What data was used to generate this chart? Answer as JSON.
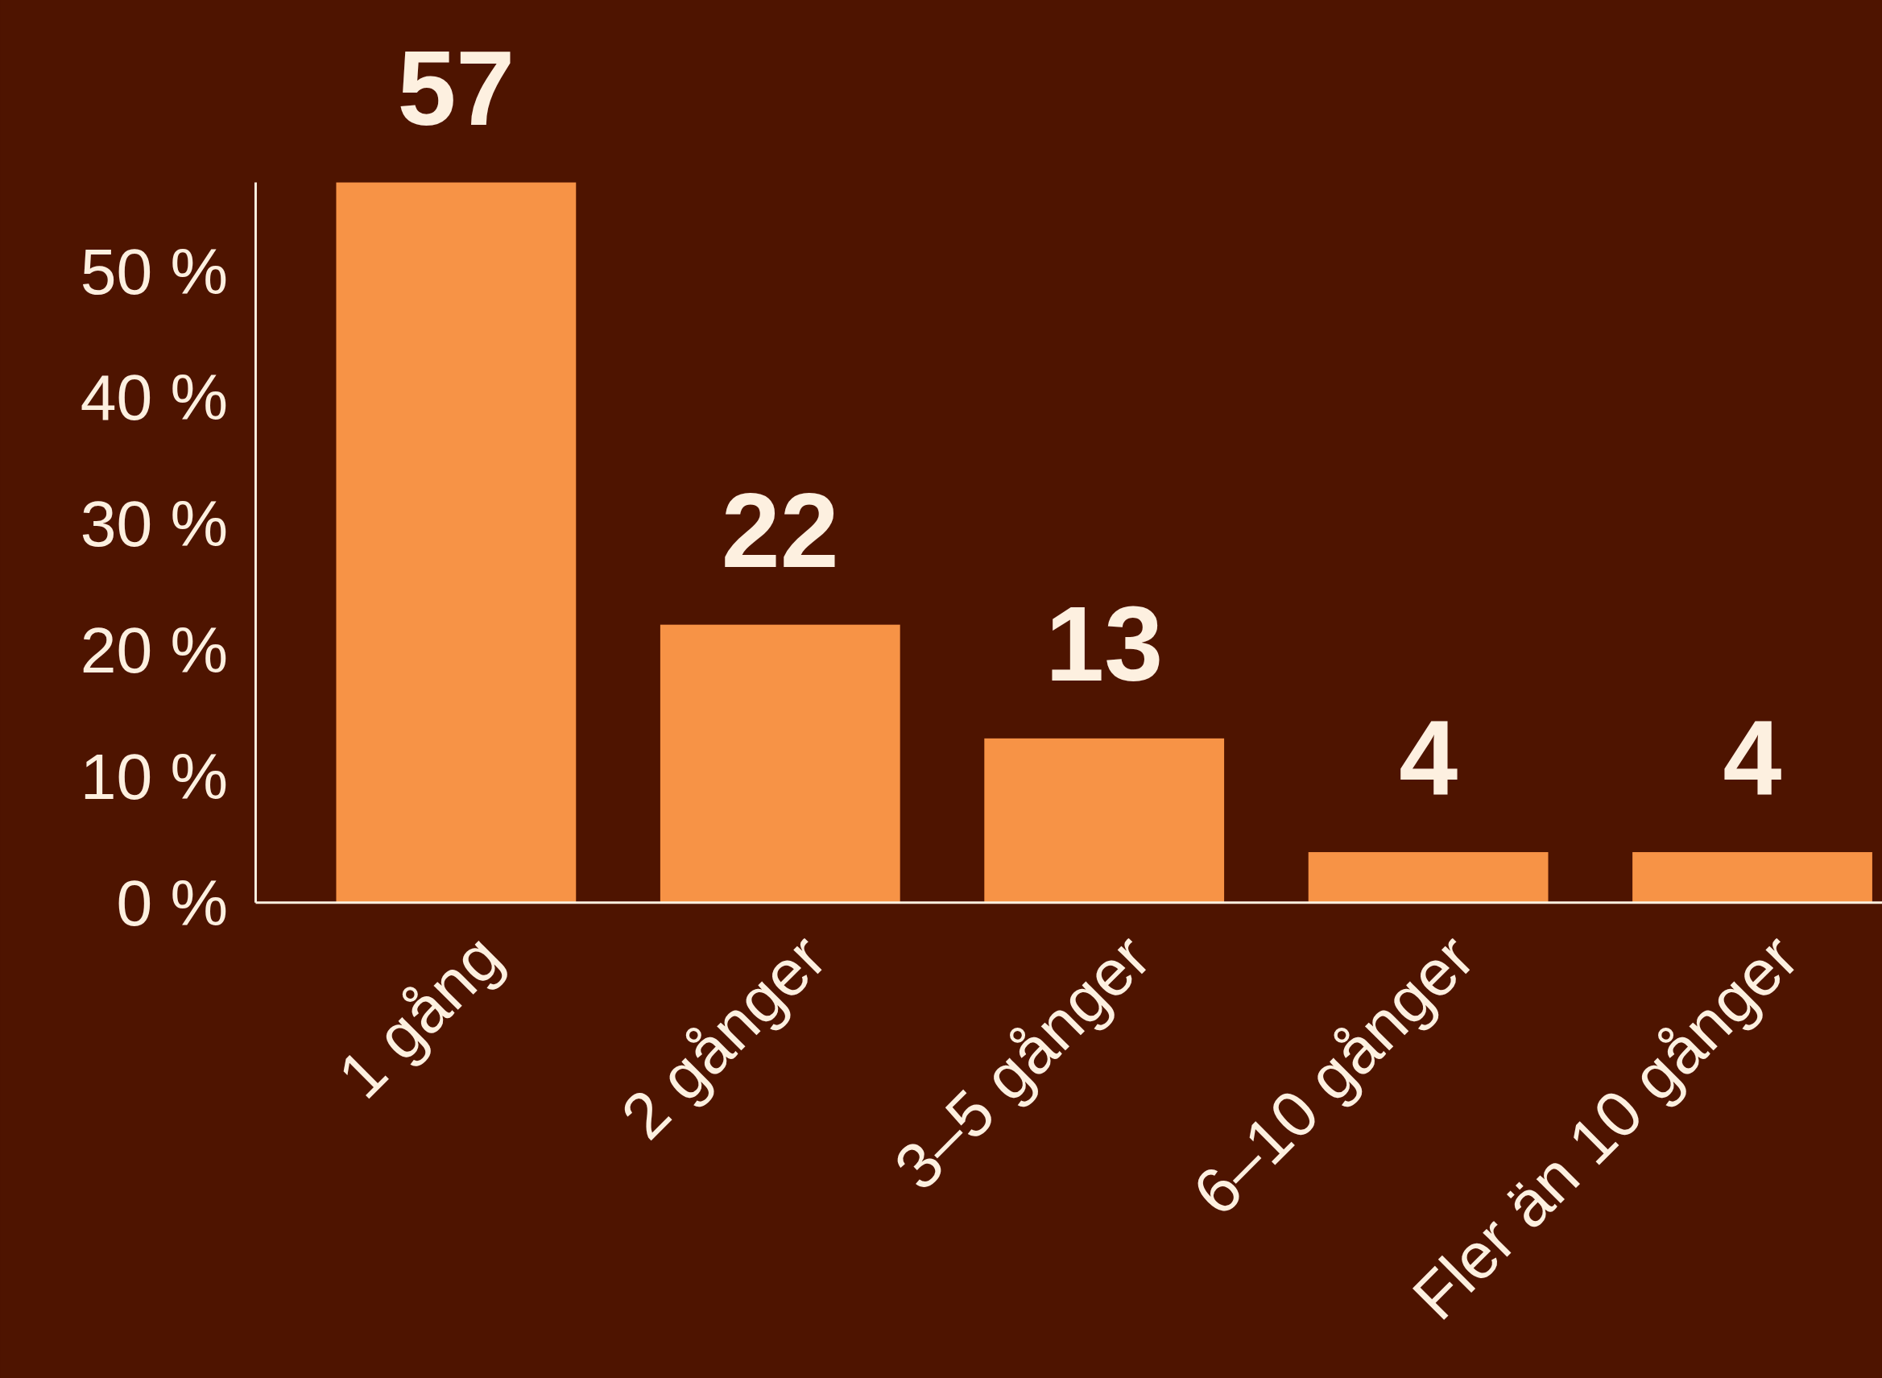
{
  "chart_data": {
    "type": "bar",
    "categories": [
      "1 gång",
      "2 gånger",
      "3–5 gånger",
      "6–10 gånger",
      "Fler än 10 gånger"
    ],
    "values": [
      57,
      22,
      13,
      4,
      4
    ],
    "color": "#f79346",
    "data_labels": true,
    "ylim": [
      0,
      57
    ],
    "yticks": [
      {
        "value": 0,
        "label": "0 %"
      },
      {
        "value": 10,
        "label": "10 %"
      },
      {
        "value": 20,
        "label": "20 %"
      },
      {
        "value": 30,
        "label": "30 %"
      },
      {
        "value": 40,
        "label": "40 %"
      },
      {
        "value": 50,
        "label": "50 %"
      }
    ],
    "tick_labels": true
  }
}
